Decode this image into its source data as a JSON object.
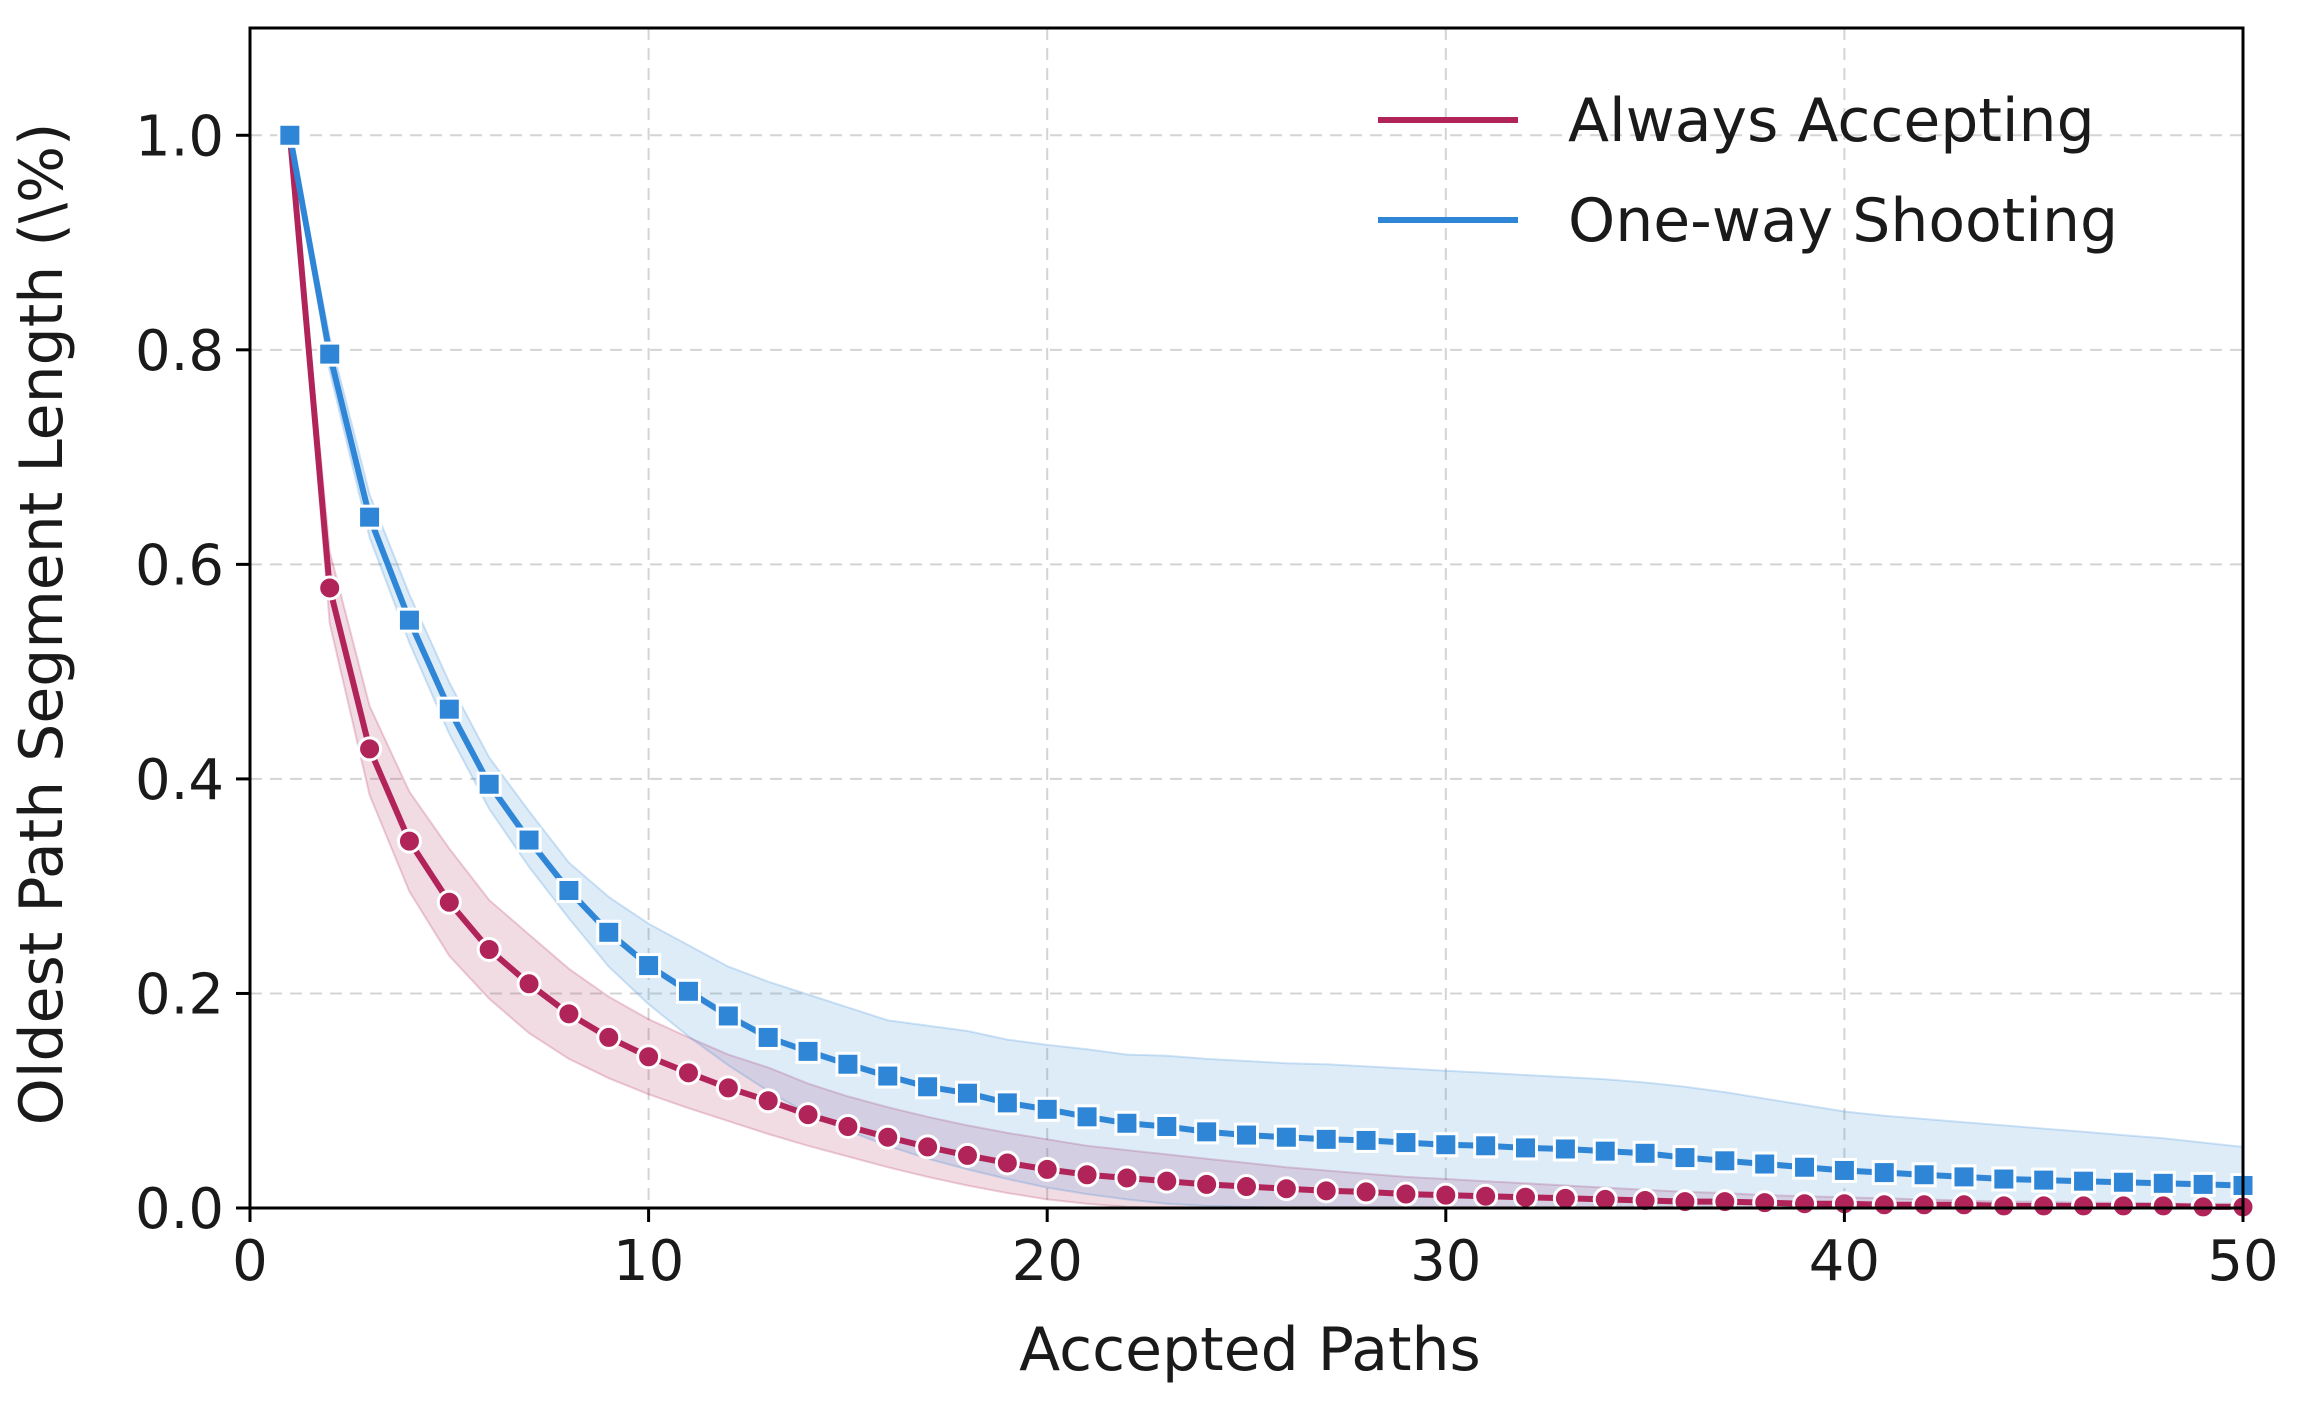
{
  "chart_data": {
    "type": "line",
    "xlabel": "Accepted Paths",
    "ylabel": "Oldest Path Segment Length (\\%)",
    "xlim": [
      0,
      50
    ],
    "ylim": [
      0.0,
      1.1
    ],
    "x_ticks": [
      "0",
      "10",
      "20",
      "30",
      "40",
      "50"
    ],
    "y_ticks": [
      "0.0",
      "0.2",
      "0.4",
      "0.6",
      "0.8",
      "1.0"
    ],
    "x_tick_values": [
      0,
      10,
      20,
      30,
      40,
      50
    ],
    "y_tick_values": [
      0.0,
      0.2,
      0.4,
      0.6,
      0.8,
      1.0
    ],
    "grid": true,
    "legend_position": "top-right",
    "x": [
      1,
      2,
      3,
      4,
      5,
      6,
      7,
      8,
      9,
      10,
      11,
      12,
      13,
      14,
      15,
      16,
      17,
      18,
      19,
      20,
      21,
      22,
      23,
      24,
      25,
      26,
      27,
      28,
      29,
      30,
      31,
      32,
      33,
      34,
      35,
      36,
      37,
      38,
      39,
      40,
      41,
      42,
      43,
      44,
      45,
      46,
      47,
      48,
      49,
      50
    ],
    "series": [
      {
        "name": "Always Accepting",
        "color": "#b0245a",
        "marker": "circle",
        "values": [
          1.0,
          0.578,
          0.428,
          0.342,
          0.285,
          0.241,
          0.209,
          0.181,
          0.159,
          0.141,
          0.126,
          0.112,
          0.1,
          0.087,
          0.076,
          0.066,
          0.057,
          0.049,
          0.042,
          0.036,
          0.031,
          0.028,
          0.025,
          0.022,
          0.02,
          0.018,
          0.016,
          0.015,
          0.013,
          0.012,
          0.011,
          0.01,
          0.009,
          0.008,
          0.007,
          0.006,
          0.006,
          0.005,
          0.004,
          0.004,
          0.003,
          0.003,
          0.003,
          0.002,
          0.002,
          0.002,
          0.002,
          0.002,
          0.001,
          0.001
        ],
        "band_lower": [
          1.0,
          0.545,
          0.385,
          0.295,
          0.235,
          0.195,
          0.163,
          0.139,
          0.121,
          0.106,
          0.093,
          0.081,
          0.069,
          0.058,
          0.048,
          0.038,
          0.029,
          0.021,
          0.014,
          0.008,
          0.004,
          0.001,
          0.0,
          0.0,
          0.0,
          0.0,
          0.0,
          0.0,
          0.0,
          0.0,
          0.0,
          0.0,
          0.0,
          0.0,
          0.0,
          0.0,
          0.0,
          0.0,
          0.0,
          0.0,
          0.0,
          0.0,
          0.0,
          0.0,
          0.0,
          0.0,
          0.0,
          0.0,
          0.0,
          0.0
        ],
        "band_upper": [
          1.0,
          0.612,
          0.468,
          0.388,
          0.335,
          0.287,
          0.255,
          0.223,
          0.197,
          0.176,
          0.159,
          0.143,
          0.131,
          0.116,
          0.104,
          0.094,
          0.085,
          0.077,
          0.07,
          0.064,
          0.058,
          0.054,
          0.05,
          0.046,
          0.042,
          0.038,
          0.035,
          0.032,
          0.029,
          0.027,
          0.025,
          0.023,
          0.021,
          0.019,
          0.017,
          0.015,
          0.014,
          0.012,
          0.011,
          0.01,
          0.009,
          0.008,
          0.007,
          0.006,
          0.006,
          0.005,
          0.005,
          0.004,
          0.004,
          0.004
        ]
      },
      {
        "name": "One-way Shooting",
        "color": "#2f86d6",
        "marker": "square",
        "values": [
          1.0,
          0.796,
          0.644,
          0.548,
          0.465,
          0.395,
          0.343,
          0.296,
          0.257,
          0.226,
          0.202,
          0.179,
          0.159,
          0.146,
          0.134,
          0.123,
          0.113,
          0.107,
          0.098,
          0.092,
          0.085,
          0.079,
          0.076,
          0.071,
          0.068,
          0.066,
          0.064,
          0.063,
          0.061,
          0.059,
          0.058,
          0.056,
          0.055,
          0.053,
          0.051,
          0.047,
          0.044,
          0.041,
          0.038,
          0.035,
          0.033,
          0.031,
          0.029,
          0.027,
          0.026,
          0.025,
          0.024,
          0.023,
          0.022,
          0.021
        ],
        "band_lower": [
          1.0,
          0.78,
          0.625,
          0.527,
          0.442,
          0.372,
          0.318,
          0.27,
          0.225,
          0.19,
          0.16,
          0.133,
          0.109,
          0.088,
          0.072,
          0.058,
          0.046,
          0.036,
          0.027,
          0.019,
          0.013,
          0.008,
          0.004,
          0.002,
          0.001,
          0.0,
          0.0,
          0.0,
          0.0,
          0.0,
          0.0,
          0.0,
          0.0,
          0.0,
          0.0,
          0.0,
          0.0,
          0.0,
          0.0,
          0.0,
          0.0,
          0.0,
          0.0,
          0.0,
          0.0,
          0.0,
          0.0,
          0.0,
          0.0,
          0.0
        ],
        "band_upper": [
          1.0,
          0.812,
          0.665,
          0.572,
          0.49,
          0.42,
          0.37,
          0.322,
          0.29,
          0.265,
          0.245,
          0.225,
          0.211,
          0.199,
          0.187,
          0.175,
          0.17,
          0.165,
          0.157,
          0.152,
          0.148,
          0.143,
          0.142,
          0.139,
          0.137,
          0.135,
          0.134,
          0.132,
          0.13,
          0.128,
          0.126,
          0.124,
          0.122,
          0.12,
          0.117,
          0.113,
          0.108,
          0.102,
          0.096,
          0.09,
          0.086,
          0.083,
          0.08,
          0.077,
          0.074,
          0.071,
          0.068,
          0.065,
          0.061,
          0.057
        ]
      }
    ]
  }
}
